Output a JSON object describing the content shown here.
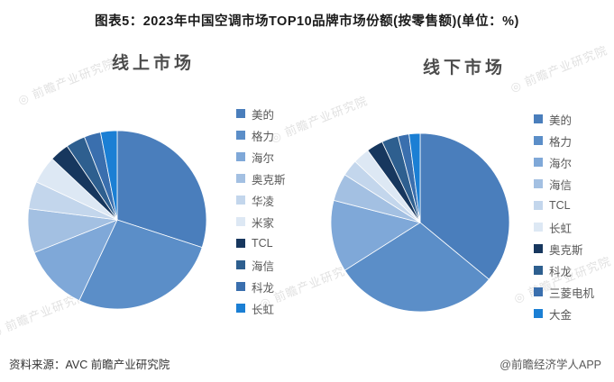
{
  "page": {
    "title": "图表5：2023年中国空调市场TOP10品牌市场份额(按零售额)(单位：%)",
    "source": "资料来源：AVC 前瞻产业研究院",
    "handle": "@前瞻经济学人APP",
    "watermark": "◎ 前瞻产业研究院"
  },
  "chart_data": [
    {
      "type": "pie",
      "title": "线上市场",
      "unit": "%",
      "legend_position": "right",
      "labels": [
        "美的",
        "格力",
        "海尔",
        "奥克斯",
        "华凌",
        "米家",
        "TCL",
        "海信",
        "科龙",
        "长虹"
      ],
      "values": [
        30,
        27,
        12,
        8,
        5,
        5,
        3.5,
        3.5,
        3,
        3
      ],
      "colors": [
        "#4a7ebc",
        "#5b8ec8",
        "#7fa8d8",
        "#a3c0e2",
        "#c3d6ec",
        "#dde8f4",
        "#17375e",
        "#2e5f8f",
        "#3a6fae",
        "#1b7fd4"
      ]
    },
    {
      "type": "pie",
      "title": "线下市场",
      "unit": "%",
      "legend_position": "right",
      "labels": [
        "美的",
        "格力",
        "海尔",
        "海信",
        "TCL",
        "长虹",
        "奥克斯",
        "科龙",
        "三菱电机",
        "大金"
      ],
      "values": [
        36,
        30,
        13,
        5,
        3,
        3,
        3,
        3,
        2,
        2
      ],
      "colors": [
        "#4a7ebc",
        "#5b8ec8",
        "#7fa8d8",
        "#a3c0e2",
        "#c3d6ec",
        "#dde8f4",
        "#17375e",
        "#2e5f8f",
        "#3a6fae",
        "#1b7fd4"
      ]
    }
  ],
  "watermark_positions_note": "decorative repeated watermark text"
}
